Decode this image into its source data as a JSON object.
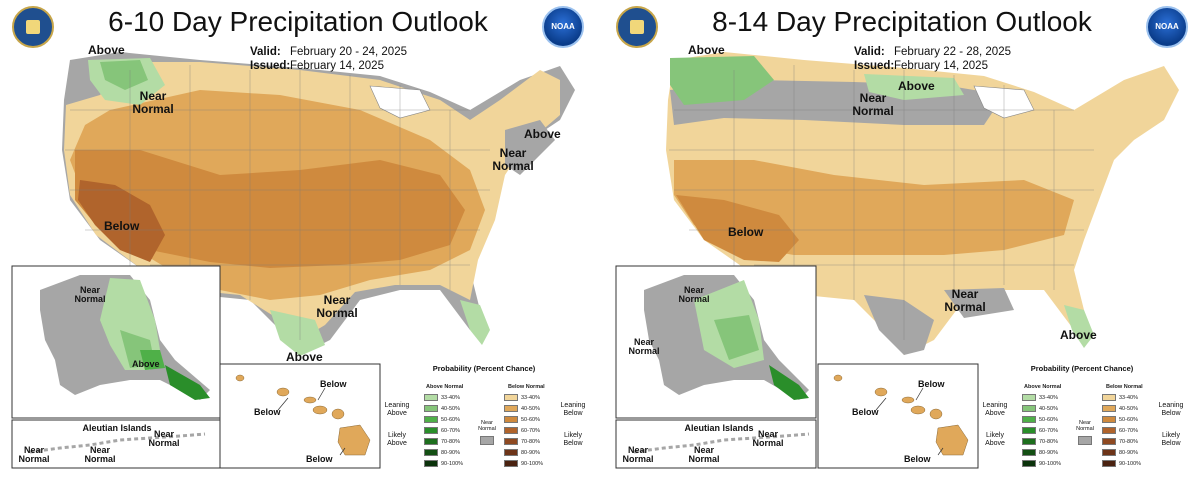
{
  "panels": [
    {
      "title": "6-10 Day Precipitation Outlook",
      "valid_label": "Valid:",
      "valid_value": "February 20 - 24, 2025",
      "issued_label": "Issued:",
      "issued_value": "February 14, 2025",
      "map_labels": [
        "Above",
        "Near Normal",
        "Above",
        "Near Normal",
        "Below",
        "Near Normal",
        "Above"
      ],
      "alaska_labels": [
        "Near Normal",
        "Above"
      ],
      "aleutian_title": "Aleutian Islands",
      "aleutian_labels": [
        "Near Normal",
        "Near Normal",
        "Near Normal"
      ],
      "hawaii_labels": [
        "Below",
        "Below",
        "Below"
      ]
    },
    {
      "title": "8-14 Day Precipitation Outlook",
      "valid_label": "Valid:",
      "valid_value": "February 22 - 28, 2025",
      "issued_label": "Issued:",
      "issued_value": "February 14, 2025",
      "map_labels": [
        "Above",
        "Above",
        "Near Normal",
        "Below",
        "Near Normal",
        "Above"
      ],
      "alaska_labels": [
        "Near Normal",
        "Near Normal"
      ],
      "aleutian_title": "Aleutian Islands",
      "aleutian_labels": [
        "Near Normal",
        "Near Normal",
        "Near Normal"
      ],
      "hawaii_labels": [
        "Below",
        "Below",
        "Below"
      ]
    }
  ],
  "logos": {
    "left": "seal-icon",
    "right": "noaa-logo-icon",
    "noaa_text": "NOAA"
  },
  "legend": {
    "title": "Probability (Percent Chance)",
    "above_header": "Above Normal",
    "below_header": "Below Normal",
    "near_label": "Near Normal",
    "leaning_above": "Leaning Above",
    "likely_above": "Likely Above",
    "leaning_below": "Leaning Below",
    "likely_below": "Likely Below",
    "ranges": [
      "33-40%",
      "40-50%",
      "50-60%",
      "60-70%",
      "70-80%",
      "80-90%",
      "90-100%"
    ],
    "above_colors": [
      "#b3dca5",
      "#86c57a",
      "#4fb048",
      "#2a8e2a",
      "#1d6e1d",
      "#134f13",
      "#0b320b"
    ],
    "below_colors": [
      "#f1d59a",
      "#e0a85a",
      "#cf8a3e",
      "#b0642c",
      "#8f4a22",
      "#6d3418",
      "#4a2210"
    ],
    "near_color": "#a6a6a6"
  },
  "colors": {
    "background": "#ffffff",
    "near_normal": "#a6a6a6",
    "below_33_40": "#f1d59a",
    "below_40_50": "#e0a85a",
    "below_50_60": "#cf8a3e",
    "below_60_70": "#b0642c",
    "above_33_40": "#b3dca5",
    "above_40_50": "#86c57a",
    "above_50_60": "#4fb048"
  }
}
